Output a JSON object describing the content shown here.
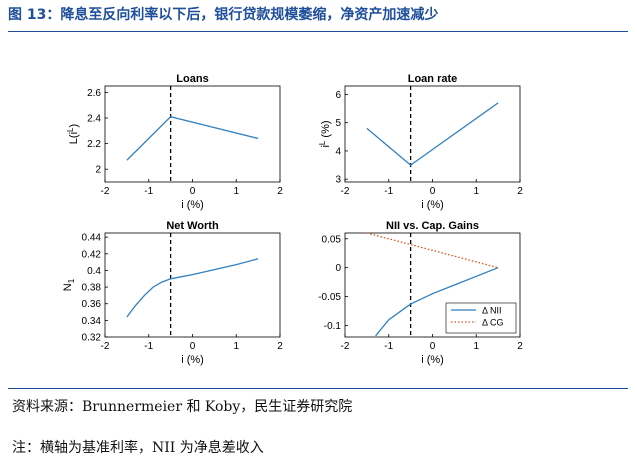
{
  "figure_title": "图 13：降息至反向利率以下后，银行贷款规模萎缩，净资产加速减少",
  "source": "资料来源：Brunnermeier 和 Koby，民生证券研究院",
  "note": "注：横轴为基准利率，NII 为净息差收入",
  "colors": {
    "title": "#1f4e9a",
    "series_blue": "#2f7fc1",
    "series_red": "#d9541e",
    "marker": "#000000"
  },
  "chart_data": [
    {
      "type": "line",
      "title": "Loans",
      "xlabel": "i (%)",
      "ylabel": "L(i^L)",
      "xlim": [
        -2,
        2
      ],
      "ylim": [
        1.9,
        2.65
      ],
      "xticks": [
        "-2",
        "-1",
        "0",
        "1",
        "2"
      ],
      "yticks": [
        "2",
        "2.2",
        "2.4",
        "2.6"
      ],
      "reversal_rate_line": -0.5,
      "series": [
        {
          "color": "#2f7fc1",
          "style": "solid",
          "x": [
            -1.5,
            -0.5,
            1.5
          ],
          "y": [
            2.07,
            2.41,
            2.24
          ]
        }
      ]
    },
    {
      "type": "line",
      "title": "Loan rate",
      "xlabel": "i (%)",
      "ylabel": "i^L (%)",
      "xlim": [
        -2,
        2
      ],
      "ylim": [
        2.9,
        6.3
      ],
      "xticks": [
        "-2",
        "-1",
        "0",
        "1",
        "2"
      ],
      "yticks": [
        "3",
        "4",
        "5",
        "6"
      ],
      "reversal_rate_line": -0.5,
      "series": [
        {
          "color": "#2f7fc1",
          "style": "solid",
          "x": [
            -1.5,
            -0.5,
            1.5
          ],
          "y": [
            4.8,
            3.5,
            5.7
          ]
        }
      ]
    },
    {
      "type": "line",
      "title": "Net Worth",
      "xlabel": "i (%)",
      "ylabel": "N_1",
      "xlim": [
        -2,
        2
      ],
      "ylim": [
        0.32,
        0.445
      ],
      "xticks": [
        "-2",
        "-1",
        "0",
        "1",
        "2"
      ],
      "yticks": [
        "0.32",
        "0.34",
        "0.36",
        "0.38",
        "0.4",
        "0.42",
        "0.44"
      ],
      "reversal_rate_line": -0.5,
      "series": [
        {
          "color": "#2f7fc1",
          "style": "solid",
          "x": [
            -1.5,
            -1.3,
            -1.1,
            -0.9,
            -0.7,
            -0.5,
            0.0,
            0.5,
            1.0,
            1.5
          ],
          "y": [
            0.344,
            0.358,
            0.37,
            0.38,
            0.386,
            0.39,
            0.395,
            0.401,
            0.407,
            0.414
          ]
        }
      ]
    },
    {
      "type": "line",
      "title": "NII vs. Cap. Gains",
      "xlabel": "i (%)",
      "ylabel": "",
      "xlim": [
        -2,
        2
      ],
      "ylim": [
        -0.12,
        0.06
      ],
      "xticks": [
        "-2",
        "-1",
        "0",
        "1",
        "2"
      ],
      "yticks": [
        "-0.1",
        "-0.05",
        "0",
        "0.05"
      ],
      "reversal_rate_line": -0.5,
      "legend_position": "bottom-right",
      "series": [
        {
          "name": "Δ NII",
          "color": "#2f7fc1",
          "style": "solid",
          "x": [
            -1.3,
            -1.0,
            -0.5,
            0.0,
            0.5,
            1.0,
            1.5
          ],
          "y": [
            -0.118,
            -0.09,
            -0.063,
            -0.045,
            -0.03,
            -0.015,
            0.0
          ]
        },
        {
          "name": "Δ CG",
          "color": "#d9541e",
          "style": "dotted",
          "x": [
            -1.5,
            1.5
          ],
          "y": [
            0.06,
            0.0
          ]
        }
      ]
    }
  ]
}
